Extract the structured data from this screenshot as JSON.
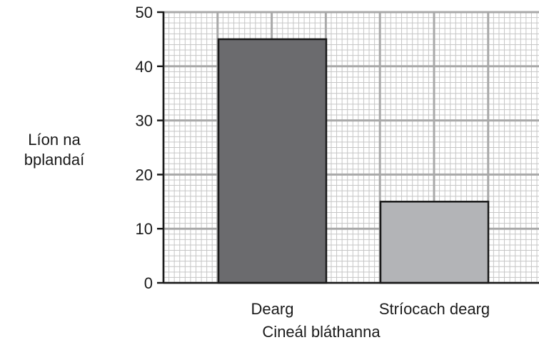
{
  "chart_data": {
    "type": "bar",
    "categories": [
      "Dearg",
      "Stríocach dearg"
    ],
    "values": [
      45,
      15
    ],
    "bar_colors": [
      "#6b6b6e",
      "#b3b4b7"
    ],
    "ylabel_lines": [
      "Líon na",
      "bplandaí"
    ],
    "xlabel": "Cineál bláthanna",
    "ylim": [
      0,
      50
    ],
    "yticks": [
      0,
      10,
      20,
      30,
      40,
      50
    ],
    "grid": true,
    "grid_major_color": "#a9a9a9",
    "grid_minor_color": "#c6c6c6"
  }
}
